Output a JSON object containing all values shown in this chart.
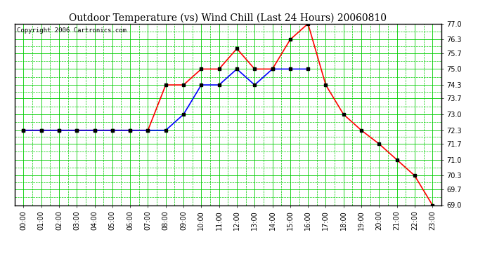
{
  "title": "Outdoor Temperature (vs) Wind Chill (Last 24 Hours) 20060810",
  "copyright": "Copyright 2006 Cartronics.com",
  "hours": [
    "00:00",
    "01:00",
    "02:00",
    "03:00",
    "04:00",
    "05:00",
    "06:00",
    "07:00",
    "08:00",
    "09:00",
    "10:00",
    "11:00",
    "12:00",
    "13:00",
    "14:00",
    "15:00",
    "16:00",
    "17:00",
    "18:00",
    "19:00",
    "20:00",
    "21:00",
    "22:00",
    "23:00"
  ],
  "temp": [
    72.3,
    72.3,
    72.3,
    72.3,
    72.3,
    72.3,
    72.3,
    72.3,
    74.3,
    74.3,
    75.0,
    75.0,
    75.9,
    75.0,
    75.0,
    76.3,
    77.0,
    74.3,
    73.0,
    72.3,
    71.7,
    71.0,
    70.3,
    69.0
  ],
  "windchill": [
    72.3,
    72.3,
    72.3,
    72.3,
    72.3,
    72.3,
    72.3,
    72.3,
    72.3,
    73.0,
    74.3,
    74.3,
    75.0,
    74.3,
    75.0,
    75.0,
    75.0,
    null,
    null,
    null,
    null,
    null,
    null,
    null
  ],
  "ylim": [
    69.0,
    77.0
  ],
  "yticks": [
    69.0,
    69.7,
    70.3,
    71.0,
    71.7,
    72.3,
    73.0,
    73.7,
    74.3,
    75.0,
    75.7,
    76.3,
    77.0
  ],
  "temp_color": "#ff0000",
  "windchill_color": "#0000ff",
  "marker": "s",
  "markersize": 2.5,
  "bg_color": "#ffffff",
  "plot_bg_color": "#ffffff",
  "grid_major_color": "#00cc00",
  "grid_minor_color": "#00cc00",
  "title_fontsize": 10,
  "copyright_fontsize": 6.5,
  "tick_fontsize": 7
}
